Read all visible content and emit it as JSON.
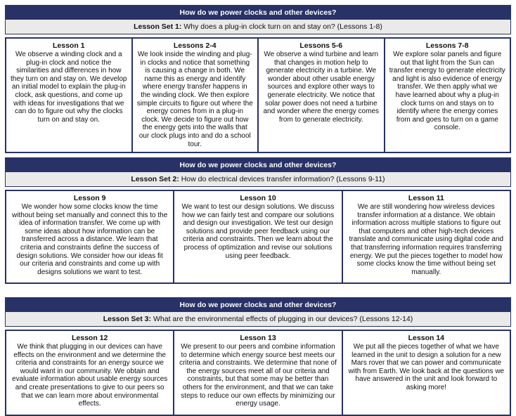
{
  "colors": {
    "navy": "#283266",
    "subtitle_gray": "#EAEAEA",
    "cell_bg": "#FFFFFF"
  },
  "sections": [
    {
      "header": "How do we power clocks and other devices?",
      "set_label": "Lesson Set 1:",
      "set_question": "Why does a plug-in clock turn on and stay on? (Lessons 1-8)",
      "lessons": [
        {
          "title": "Lesson 1",
          "text": "We observe a winding clock and a plug-in clock and notice the similarities and differences in how they turn on and stay on. We develop an initial model to explain the plug-in clock, ask questions, and come up with ideas for investigations that we can do to figure out why the clocks turn on and stay on."
        },
        {
          "title": "Lessons 2-4",
          "text": "We look inside the winding and plug-in clocks and notice that something is causing a change in both. We name this as energy and identify where energy transfer happens in the winding clock. We then explore simple circuits to figure out where the energy comes from in a plug-in clock. We decide to figure out how the energy gets into the walls that our clock plugs into and do a school tour."
        },
        {
          "title": "Lessons 5-6",
          "text": "We observe a wind turbine and learn that changes in motion help to generate electricity in a turbine. We wonder about other usable energy sources and explore other ways to generate electricity. We notice that solar power does not need a turbine and wonder where the energy comes from to generate electricity."
        },
        {
          "title": "Lessons 7-8",
          "text": "We explore solar panels and figure out that light from the Sun can transfer energy to generate electricity and light is also evidence of energy transfer. We then apply what we have learned about why a plug-in clock turns on and stays on to identify where the energy comes from and goes to turn on a game console."
        }
      ]
    },
    {
      "header": "How do we power clocks and other devices?",
      "set_label": "Lesson Set 2:",
      "set_question": "How do electrical devices transfer information? (Lessons 9-11)",
      "lessons": [
        {
          "title": "Lesson 9",
          "text": "We wonder how some clocks know the time without being set manually and connect this to the idea of information transfer. We come up with some ideas about how information can be transferred across a distance. We learn that criteria and constraints define the success of design solutions. We consider how our ideas fit our criteria and constraints and come up with designs solutions we want to test."
        },
        {
          "title": "Lesson 10",
          "text": "We want to test our design solutions. We discuss how we can fairly test and compare our solutions and design our investigation. We test our design solutions and provide peer feedback using our criteria and constraints. Then we learn about the process of optimization and revise our solutions using peer feedback."
        },
        {
          "title": "Lesson 11",
          "text": "We are still wondering how wireless devices transfer information at a distance. We obtain information across multiple stations to figure out that computers and other high-tech devices translate and communicate using digital code and that transferring information requires transferring energy. We put the pieces together to model how some clocks know the time without being set manually."
        }
      ]
    },
    {
      "header": "How do we power clocks and other devices?",
      "set_label": "Lesson Set 3:",
      "set_question": "What are the environmental effects of plugging in our devices? (Lessons 12-14)",
      "lessons": [
        {
          "title": "Lesson 12",
          "text": "We think that plugging in our devices can have effects on the environment and we determine the criteria and constraints for an energy source we would want in our community. We obtain and evaluate information about usable energy sources and create presentations to give to our peers so that we can learn more about environmental effects."
        },
        {
          "title": "Lesson 13",
          "text": "We present to our peers and combine information to determine which energy source best meets our criteria and constraints. We determine that none of the energy sources meet all of our criteria and constraints, but that some may be better than others for the environment, and that we can take steps to reduce our own effects by minimizing our energy usage."
        },
        {
          "title": "Lesson 14",
          "text": "We put all the pieces together of what we have learned in the unit to design a solution for a new Mars rover that we can power and communicate with from Earth. We look back at the questions we have answered in the unit and look forward to asking more!"
        }
      ]
    }
  ]
}
